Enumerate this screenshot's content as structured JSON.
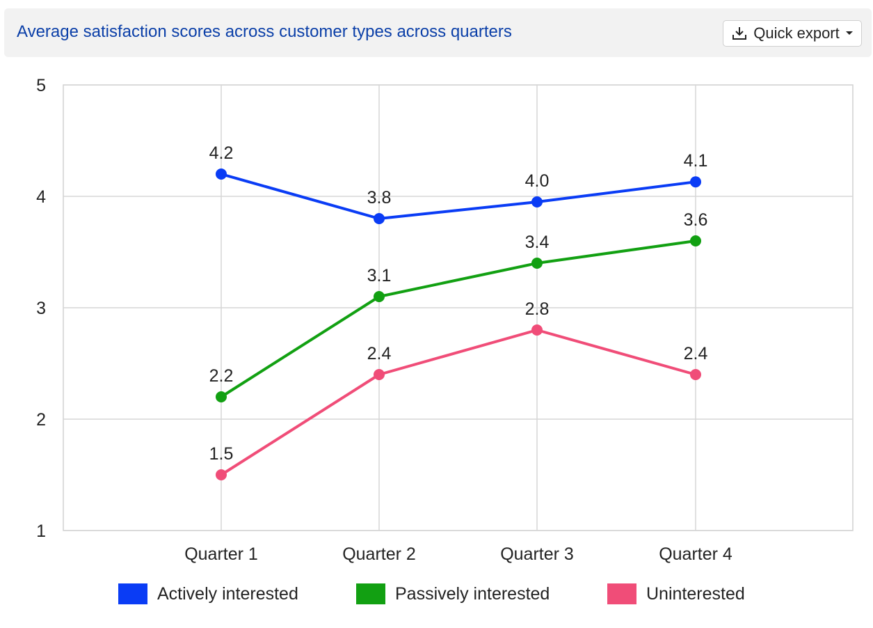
{
  "header": {
    "title": "Average satisfaction scores across customer types across quarters",
    "export_label": "Quick export"
  },
  "chart_data": {
    "type": "line",
    "title": "Average satisfaction scores across customer types across quarters",
    "categories": [
      "Quarter 1",
      "Quarter 2",
      "Quarter 3",
      "Quarter 4"
    ],
    "ylim": [
      1,
      5
    ],
    "yticks": [
      1,
      2,
      3,
      4,
      5
    ],
    "grid": true,
    "legend_position": "bottom",
    "series": [
      {
        "name": "Actively interested",
        "color": "#0a3cf5",
        "values": [
          4.2,
          3.8,
          3.95,
          4.13
        ],
        "labels": [
          "4.2",
          "3.8",
          "4.0",
          "4.1"
        ]
      },
      {
        "name": "Passively interested",
        "color": "#12a012",
        "values": [
          2.2,
          3.1,
          3.4,
          3.6
        ],
        "labels": [
          "2.2",
          "3.1",
          "3.4",
          "3.6"
        ]
      },
      {
        "name": "Uninterested",
        "color": "#f04d78",
        "values": [
          1.5,
          2.4,
          2.8,
          2.4
        ],
        "labels": [
          "1.5",
          "2.4",
          "2.8",
          "2.4"
        ]
      }
    ]
  }
}
